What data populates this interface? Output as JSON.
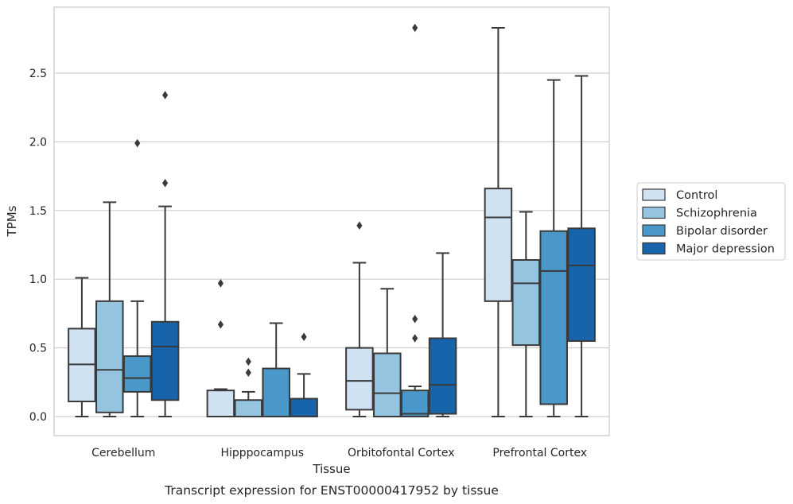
{
  "chart_data": {
    "type": "box",
    "xlabel": "Tissue",
    "ylabel": "TPMs",
    "caption": "Transcript expression for ENST00000417952 by tissue",
    "ylim": [
      -0.14,
      2.98
    ],
    "yticks": [
      0.0,
      0.5,
      1.0,
      1.5,
      2.0,
      2.5
    ],
    "ytick_labels": [
      "0.0",
      "0.5",
      "1.0",
      "1.5",
      "2.0",
      "2.5"
    ],
    "grid": "horizontal",
    "legend_position": "right",
    "categories": [
      "Cerebellum",
      "Hipppocampus",
      "Orbitofontal Cortex",
      "Prefrontal Cortex"
    ],
    "series": [
      {
        "name": "Control",
        "color": "#d0e1f2",
        "boxes": [
          {
            "whislo": 0.0,
            "q1": 0.11,
            "med": 0.38,
            "q3": 0.64,
            "whishi": 1.01,
            "fliers": []
          },
          {
            "whislo": 0.0,
            "q1": 0.0,
            "med": 0.0,
            "q3": 0.19,
            "whishi": 0.2,
            "fliers": [
              0.67,
              0.97
            ]
          },
          {
            "whislo": 0.0,
            "q1": 0.05,
            "med": 0.26,
            "q3": 0.5,
            "whishi": 1.12,
            "fliers": [
              1.39
            ]
          },
          {
            "whislo": 0.0,
            "q1": 0.84,
            "med": 1.45,
            "q3": 1.66,
            "whishi": 2.83,
            "fliers": []
          }
        ]
      },
      {
        "name": "Schizophrenia",
        "color": "#94c4df",
        "boxes": [
          {
            "whislo": 0.0,
            "q1": 0.03,
            "med": 0.34,
            "q3": 0.84,
            "whishi": 1.56,
            "fliers": []
          },
          {
            "whislo": 0.0,
            "q1": 0.0,
            "med": 0.0,
            "q3": 0.12,
            "whishi": 0.18,
            "fliers": [
              0.32,
              0.4
            ]
          },
          {
            "whislo": 0.0,
            "q1": 0.0,
            "med": 0.17,
            "q3": 0.46,
            "whishi": 0.93,
            "fliers": []
          },
          {
            "whislo": 0.0,
            "q1": 0.52,
            "med": 0.97,
            "q3": 1.14,
            "whishi": 1.49,
            "fliers": []
          }
        ]
      },
      {
        "name": "Bipolar disorder",
        "color": "#4a98c9",
        "boxes": [
          {
            "whislo": 0.0,
            "q1": 0.18,
            "med": 0.28,
            "q3": 0.44,
            "whishi": 0.84,
            "fliers": [
              1.99
            ]
          },
          {
            "whislo": 0.0,
            "q1": 0.0,
            "med": 0.0,
            "q3": 0.35,
            "whishi": 0.68,
            "fliers": []
          },
          {
            "whislo": 0.0,
            "q1": 0.0,
            "med": 0.02,
            "q3": 0.19,
            "whishi": 0.22,
            "fliers": [
              0.57,
              0.71,
              2.83
            ]
          },
          {
            "whislo": 0.0,
            "q1": 0.09,
            "med": 1.06,
            "q3": 1.35,
            "whishi": 2.45,
            "fliers": []
          }
        ]
      },
      {
        "name": "Major depression",
        "color": "#1764ab",
        "boxes": [
          {
            "whislo": 0.0,
            "q1": 0.12,
            "med": 0.51,
            "q3": 0.69,
            "whishi": 1.53,
            "fliers": [
              1.7,
              2.34
            ]
          },
          {
            "whislo": 0.0,
            "q1": 0.0,
            "med": 0.0,
            "q3": 0.13,
            "whishi": 0.31,
            "fliers": [
              0.58
            ]
          },
          {
            "whislo": 0.0,
            "q1": 0.02,
            "med": 0.23,
            "q3": 0.57,
            "whishi": 1.19,
            "fliers": []
          },
          {
            "whislo": 0.0,
            "q1": 0.55,
            "med": 1.1,
            "q3": 1.37,
            "whishi": 2.48,
            "fliers": []
          }
        ]
      }
    ]
  }
}
